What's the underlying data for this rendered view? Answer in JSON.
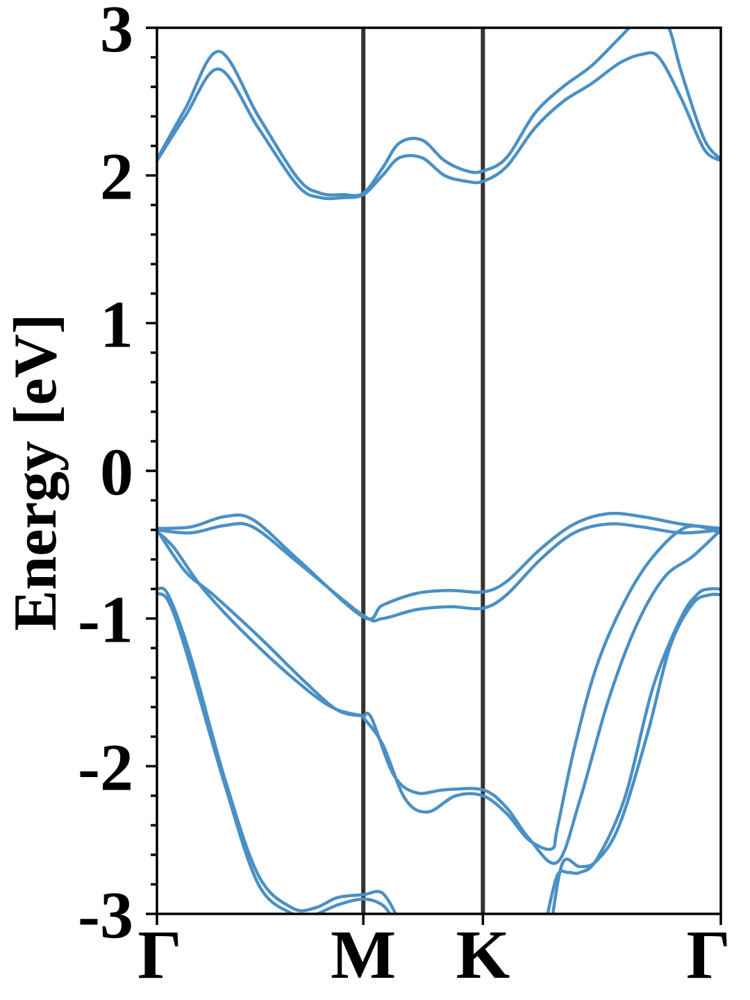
{
  "chart_data": {
    "type": "line",
    "title": "",
    "xlabel": "",
    "ylabel": "Energy [eV]",
    "ylim": [
      -3,
      3
    ],
    "yticks": [
      "3",
      "2",
      "1",
      "0",
      "-1",
      "-2",
      "-3"
    ],
    "xticks": [
      {
        "label": "Γ",
        "pos": 0.0
      },
      {
        "label": "M",
        "pos": 0.366
      },
      {
        "label": "K",
        "pos": 0.578
      },
      {
        "label": "Γ",
        "pos": 1.0
      }
    ],
    "grid": false,
    "line_color": "#4a90c4",
    "divider_color": "#333333",
    "series": [
      {
        "x": [
          0.0,
          0.05,
          0.11,
          0.18,
          0.25,
          0.29,
          0.33,
          0.366,
          0.4,
          0.43,
          0.47,
          0.51,
          0.55,
          0.578,
          0.62,
          0.67,
          0.72,
          0.77,
          0.82,
          0.86,
          0.89,
          0.93,
          0.97,
          1.0
        ],
        "y": [
          2.1,
          2.4,
          2.72,
          2.32,
          1.93,
          1.85,
          1.85,
          1.87,
          2.0,
          2.12,
          2.12,
          2.0,
          1.96,
          1.96,
          2.06,
          2.32,
          2.5,
          2.62,
          2.76,
          2.82,
          2.8,
          2.52,
          2.18,
          2.1
        ]
      },
      {
        "x": [
          0.0,
          0.05,
          0.11,
          0.18,
          0.25,
          0.29,
          0.33,
          0.366,
          0.4,
          0.43,
          0.47,
          0.51,
          0.55,
          0.578,
          0.62,
          0.67,
          0.72,
          0.77,
          0.82,
          0.86,
          0.89,
          0.91,
          0.93,
          0.97,
          1.0
        ],
        "y": [
          2.11,
          2.45,
          2.84,
          2.4,
          1.98,
          1.88,
          1.87,
          1.88,
          2.05,
          2.22,
          2.24,
          2.1,
          2.03,
          2.03,
          2.12,
          2.42,
          2.6,
          2.74,
          2.93,
          3.08,
          3.1,
          2.98,
          2.7,
          2.25,
          2.11
        ]
      },
      {
        "x": [
          0.0,
          0.06,
          0.12,
          0.17,
          0.25,
          0.366,
          0.4,
          0.46,
          0.52,
          0.578,
          0.62,
          0.68,
          0.74,
          0.8,
          0.86,
          0.93,
          1.0
        ],
        "y": [
          -0.39,
          -0.38,
          -0.31,
          -0.33,
          -0.6,
          -0.99,
          -0.91,
          -0.83,
          -0.81,
          -0.82,
          -0.75,
          -0.53,
          -0.36,
          -0.29,
          -0.31,
          -0.36,
          -0.39
        ]
      },
      {
        "x": [
          0.0,
          0.06,
          0.12,
          0.17,
          0.25,
          0.366,
          0.4,
          0.46,
          0.52,
          0.578,
          0.62,
          0.68,
          0.74,
          0.8,
          0.86,
          0.93,
          1.0
        ],
        "y": [
          -0.4,
          -0.42,
          -0.37,
          -0.38,
          -0.62,
          -0.98,
          -1.0,
          -0.94,
          -0.92,
          -0.93,
          -0.84,
          -0.6,
          -0.42,
          -0.36,
          -0.38,
          -0.42,
          -0.4
        ]
      },
      {
        "x": [
          0.0,
          0.05,
          0.1,
          0.18,
          0.26,
          0.32,
          0.366
        ],
        "y": [
          -0.4,
          -0.68,
          -0.84,
          -1.12,
          -1.42,
          -1.62,
          -1.66
        ]
      },
      {
        "x": [
          0.0,
          0.03,
          0.08,
          0.15,
          0.24,
          0.31,
          0.366
        ],
        "y": [
          -0.41,
          -0.52,
          -0.79,
          -1.08,
          -1.4,
          -1.6,
          -1.66
        ]
      },
      {
        "x": [
          0.366,
          0.4,
          0.44,
          0.48,
          0.53,
          0.578,
          0.62,
          0.66,
          0.7,
          0.71,
          0.74,
          0.78,
          0.83,
          0.88,
          0.94,
          1.0
        ],
        "y": [
          -1.67,
          -1.85,
          -2.22,
          -2.31,
          -2.2,
          -2.2,
          -2.32,
          -2.5,
          -2.56,
          -2.42,
          -1.88,
          -1.32,
          -0.88,
          -0.58,
          -0.38,
          -0.42
        ]
      },
      {
        "x": [
          0.366,
          0.38,
          0.42,
          0.46,
          0.51,
          0.578,
          0.62,
          0.66,
          0.71,
          0.75,
          0.8,
          0.85,
          0.9,
          0.95,
          1.0
        ],
        "y": [
          -1.67,
          -1.67,
          -2.06,
          -2.18,
          -2.16,
          -2.16,
          -2.28,
          -2.49,
          -2.65,
          -2.23,
          -1.56,
          -1.05,
          -0.72,
          -0.58,
          -0.4
        ]
      },
      {
        "x": [
          0.0,
          0.02,
          0.06,
          0.12,
          0.18,
          0.24,
          0.28,
          0.32,
          0.366,
          0.4,
          0.43
        ],
        "y": [
          -0.8,
          -0.84,
          -1.26,
          -2.08,
          -2.74,
          -2.96,
          -2.96,
          -2.89,
          -2.87,
          -2.86,
          -3.05
        ]
      },
      {
        "x": [
          0.0,
          0.02,
          0.05,
          0.12,
          0.18,
          0.24,
          0.27,
          0.32,
          0.366,
          0.4,
          0.42
        ],
        "y": [
          -0.83,
          -0.88,
          -1.2,
          -2.12,
          -2.8,
          -3.0,
          -3.02,
          -2.94,
          -2.9,
          -2.94,
          -3.04
        ]
      },
      {
        "x": [
          0.69,
          0.71,
          0.73,
          0.75,
          0.78,
          0.83,
          0.88,
          0.93,
          0.96,
          0.98,
          1.0
        ],
        "y": [
          -3.05,
          -2.74,
          -2.72,
          -2.72,
          -2.63,
          -2.21,
          -1.46,
          -0.99,
          -0.83,
          -0.8,
          -0.8
        ]
      },
      {
        "x": [
          0.7,
          0.72,
          0.75,
          0.78,
          0.82,
          0.87,
          0.91,
          0.95,
          0.98,
          1.0
        ],
        "y": [
          -3.05,
          -2.65,
          -2.68,
          -2.64,
          -2.4,
          -1.78,
          -1.19,
          -0.9,
          -0.84,
          -0.84
        ]
      }
    ]
  }
}
